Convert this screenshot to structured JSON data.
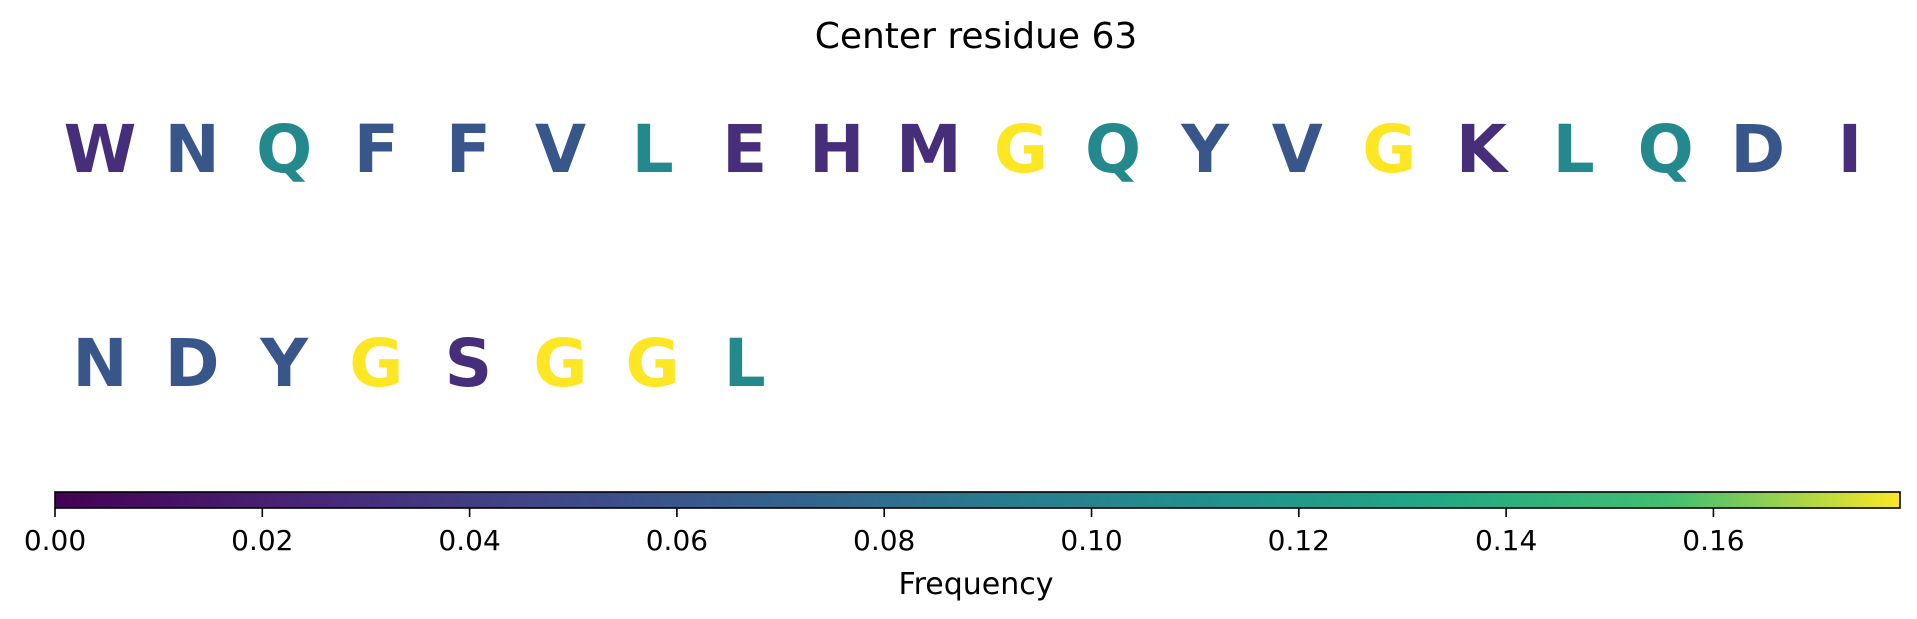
{
  "chart_data": {
    "type": "heatmap",
    "title": "Center residue 63",
    "colorbar": {
      "label": "Frequency",
      "range": [
        0,
        0.178
      ],
      "colormap": "viridis",
      "ticks": [
        0.0,
        0.02,
        0.04,
        0.06,
        0.08,
        0.1,
        0.12,
        0.14,
        0.16
      ],
      "tick_labels": [
        "0.00",
        "0.02",
        "0.04",
        "0.06",
        "0.08",
        "0.10",
        "0.12",
        "0.14",
        "0.16"
      ]
    },
    "residues": [
      {
        "letter": "W",
        "value": 0.03
      },
      {
        "letter": "N",
        "value": 0.06
      },
      {
        "letter": "Q",
        "value": 0.105
      },
      {
        "letter": "F",
        "value": 0.06
      },
      {
        "letter": "F",
        "value": 0.06
      },
      {
        "letter": "V",
        "value": 0.06
      },
      {
        "letter": "L",
        "value": 0.105
      },
      {
        "letter": "E",
        "value": 0.03
      },
      {
        "letter": "H",
        "value": 0.03
      },
      {
        "letter": "M",
        "value": 0.03
      },
      {
        "letter": "G",
        "value": 0.178
      },
      {
        "letter": "Q",
        "value": 0.105
      },
      {
        "letter": "Y",
        "value": 0.06
      },
      {
        "letter": "V",
        "value": 0.06
      },
      {
        "letter": "G",
        "value": 0.178
      },
      {
        "letter": "K",
        "value": 0.03
      },
      {
        "letter": "L",
        "value": 0.105
      },
      {
        "letter": "Q",
        "value": 0.105
      },
      {
        "letter": "D",
        "value": 0.06
      },
      {
        "letter": "I",
        "value": 0.03
      },
      {
        "letter": "N",
        "value": 0.06
      },
      {
        "letter": "D",
        "value": 0.06
      },
      {
        "letter": "Y",
        "value": 0.06
      },
      {
        "letter": "G",
        "value": 0.178
      },
      {
        "letter": "S",
        "value": 0.03
      },
      {
        "letter": "G",
        "value": 0.178
      },
      {
        "letter": "G",
        "value": 0.178
      },
      {
        "letter": "L",
        "value": 0.105
      }
    ]
  }
}
